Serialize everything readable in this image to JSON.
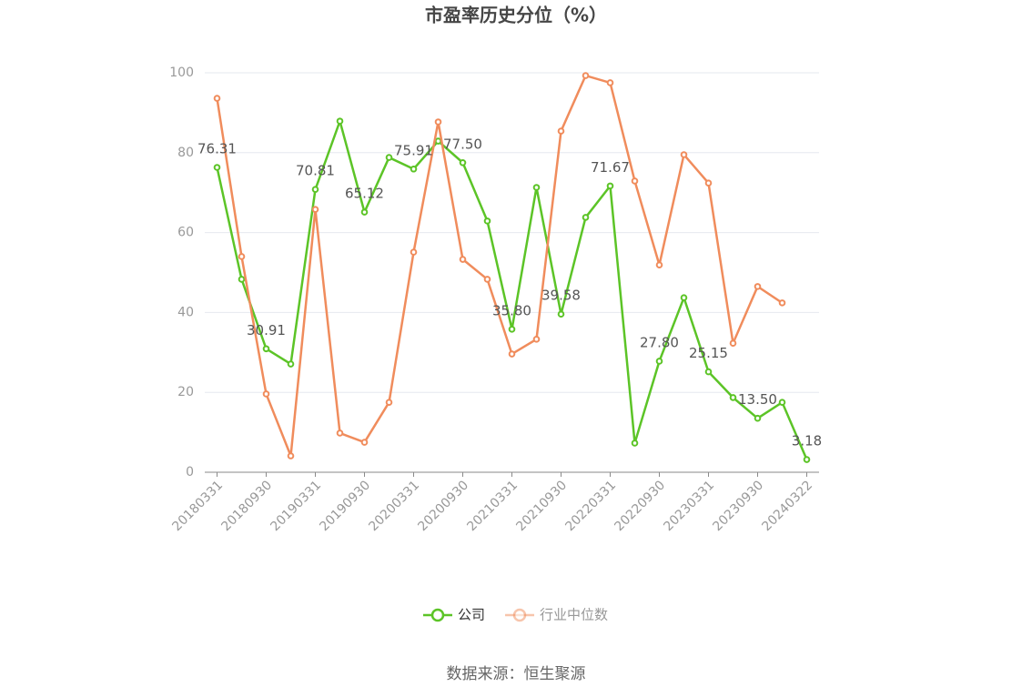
{
  "chart_data": {
    "type": "line",
    "title": "市盈率历史分位（%）",
    "categories": [
      "20180331",
      null,
      "20180930",
      null,
      "20190331",
      null,
      "20190930",
      null,
      "20200331",
      null,
      "20200930",
      null,
      "20210331",
      null,
      "20210930",
      null,
      "20220331",
      null,
      "20220930",
      null,
      "20230331",
      null,
      "20230930",
      null,
      "20240322"
    ],
    "series": [
      {
        "name": "公司",
        "color": "#5cc427",
        "values": [
          76.31,
          48.3,
          30.91,
          27.1,
          70.81,
          87.9,
          65.12,
          78.8,
          75.91,
          82.9,
          77.5,
          62.9,
          35.8,
          71.3,
          39.58,
          63.8,
          71.67,
          7.3,
          27.8,
          43.7,
          25.15,
          18.7,
          13.5,
          17.5,
          3.18
        ],
        "value_labels": [
          "76.31",
          null,
          "30.91",
          null,
          "70.81",
          null,
          "65.12",
          null,
          "75.91",
          null,
          "77.50",
          null,
          "35.80",
          null,
          "39.58",
          null,
          "71.67",
          null,
          "27.80",
          null,
          "25.15",
          null,
          "13.50",
          null,
          "3.18"
        ]
      },
      {
        "name": "行业中位数",
        "color": "#f08c5c",
        "values": [
          93.6,
          54.0,
          19.6,
          4.1,
          65.8,
          9.8,
          7.5,
          17.5,
          55.1,
          87.7,
          53.3,
          48.3,
          29.6,
          33.3,
          85.4,
          99.3,
          97.5,
          72.9,
          51.9,
          79.5,
          72.4,
          32.3,
          46.5,
          42.4,
          null
        ]
      }
    ],
    "ylim": [
      0,
      100
    ],
    "yticks": [
      0,
      20,
      40,
      60,
      80,
      100
    ],
    "grid": true,
    "source": "数据来源：恒生聚源"
  }
}
